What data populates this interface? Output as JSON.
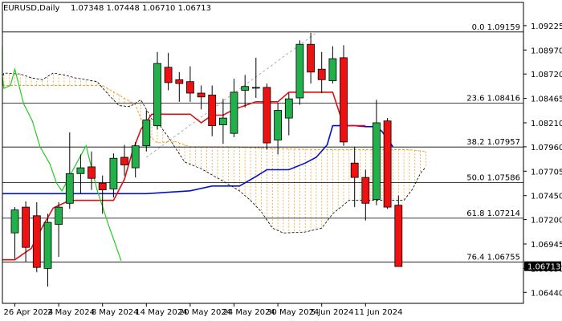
{
  "header": {
    "symbol": "EURUSD,Daily",
    "ohlc": "1.07348 1.07448 1.06710 1.06713"
  },
  "colors": {
    "bull": "#22b04b",
    "bear": "#ee1111",
    "kijun": "#0011cc",
    "tenkan": "#dd1111",
    "chikou": "#22cc22",
    "cloud": "#f0a030",
    "senkou": "#000000",
    "price_box": "#000000"
  },
  "chart_data": {
    "type": "candlestick",
    "title": "EURUSD,Daily",
    "ylim": [
      1.0635,
      1.0935
    ],
    "y_ticks": [
      "1.09225",
      "1.08970",
      "1.08720",
      "1.08465",
      "1.08210",
      "1.07960",
      "1.07705",
      "1.07450",
      "1.07200",
      "1.06945",
      "1.06690",
      "1.06440"
    ],
    "x_labels": [
      {
        "i": 0,
        "text": "26 Apr 2024"
      },
      {
        "i": 4,
        "text": "2 May 2024"
      },
      {
        "i": 8,
        "text": "8 May 2024"
      },
      {
        "i": 12,
        "text": "14 May 2024"
      },
      {
        "i": 16,
        "text": "20 May 2024"
      },
      {
        "i": 20,
        "text": "24 May 2024"
      },
      {
        "i": 24,
        "text": "30 May 2024"
      },
      {
        "i": 28,
        "text": "5 Jun 2024"
      },
      {
        "i": 32,
        "text": "11 Jun 2024"
      }
    ],
    "candles": [
      [
        1.0706,
        1.0733,
        1.0679,
        1.073
      ],
      [
        1.0733,
        1.0739,
        1.0676,
        1.0691
      ],
      [
        1.0724,
        1.0738,
        1.0665,
        1.067
      ],
      [
        1.0669,
        1.0726,
        1.065,
        1.0717
      ],
      [
        1.0715,
        1.0738,
        1.0681,
        1.0733
      ],
      [
        1.0737,
        1.0811,
        1.0731,
        1.0768
      ],
      [
        1.0768,
        1.0788,
        1.0747,
        1.0774
      ],
      [
        1.0775,
        1.0791,
        1.0751,
        1.0763
      ],
      [
        1.0758,
        1.0766,
        1.0726,
        1.0751
      ],
      [
        1.0752,
        1.0789,
        1.0743,
        1.0784
      ],
      [
        1.0785,
        1.0798,
        1.0766,
        1.0777
      ],
      [
        1.0774,
        1.0801,
        1.0764,
        1.0797
      ],
      [
        1.0797,
        1.0834,
        1.0791,
        1.0824
      ],
      [
        1.0818,
        1.0895,
        1.0814,
        1.0883
      ],
      [
        1.0879,
        1.0894,
        1.0855,
        1.0863
      ],
      [
        1.0866,
        1.0874,
        1.0843,
        1.0862
      ],
      [
        1.0864,
        1.088,
        1.0843,
        1.0852
      ],
      [
        1.0852,
        1.086,
        1.0835,
        1.0848
      ],
      [
        1.085,
        1.086,
        1.0807,
        1.0818
      ],
      [
        1.0819,
        1.0846,
        1.0799,
        1.0826
      ],
      [
        1.081,
        1.0867,
        1.0806,
        1.0853
      ],
      [
        1.0855,
        1.0871,
        1.0837,
        1.0859
      ],
      [
        1.0858,
        1.0889,
        1.0847,
        1.0858
      ],
      [
        1.0858,
        1.0862,
        1.0793,
        1.08
      ],
      [
        1.0803,
        1.0842,
        1.0788,
        1.0834
      ],
      [
        1.0826,
        1.0852,
        1.0808,
        1.0846
      ],
      [
        1.0847,
        1.0907,
        1.084,
        1.0903
      ],
      [
        1.0903,
        1.0915,
        1.0862,
        1.0874
      ],
      [
        1.0877,
        1.0895,
        1.0852,
        1.0866
      ],
      [
        1.0865,
        1.0901,
        1.0862,
        1.0888
      ],
      [
        1.0889,
        1.0902,
        1.0797,
        1.0801
      ],
      [
        1.0779,
        1.0796,
        1.0733,
        1.0764
      ],
      [
        1.0764,
        1.0772,
        1.0719,
        1.0737
      ],
      [
        1.0741,
        1.0845,
        1.0735,
        1.0821
      ],
      [
        1.0823,
        1.0826,
        1.0731,
        1.0733
      ],
      [
        1.0735,
        1.0745,
        1.0671,
        1.0671
      ]
    ],
    "kijun": [
      [
        -4,
        1.0747
      ],
      [
        12,
        1.0747
      ],
      [
        16,
        1.075
      ],
      [
        18,
        1.0755
      ],
      [
        20.5,
        1.0755
      ],
      [
        22,
        1.0765
      ],
      [
        23,
        1.0772
      ],
      [
        25,
        1.0772
      ],
      [
        26.5,
        1.0779
      ],
      [
        27.5,
        1.0785
      ],
      [
        28.5,
        1.0798
      ],
      [
        29,
        1.0818
      ],
      [
        31,
        1.0818
      ],
      [
        32,
        1.0817
      ],
      [
        33,
        1.0817
      ],
      [
        33.5,
        1.0812
      ],
      [
        34.5,
        1.0796
      ]
    ],
    "tenkan": [
      [
        -4,
        1.0678
      ],
      [
        0,
        1.0678
      ],
      [
        1.5,
        1.069
      ],
      [
        2.5,
        1.0712
      ],
      [
        3.5,
        1.0732
      ],
      [
        5,
        1.074
      ],
      [
        9,
        1.074
      ],
      [
        10,
        1.0762
      ],
      [
        10.7,
        1.079
      ],
      [
        11.5,
        1.0814
      ],
      [
        12.5,
        1.083
      ],
      [
        16,
        1.083
      ],
      [
        17,
        1.0821
      ],
      [
        18,
        1.0829
      ],
      [
        19,
        1.0829
      ],
      [
        20,
        1.0835
      ],
      [
        22,
        1.0843
      ],
      [
        24,
        1.0843
      ],
      [
        25,
        1.0853
      ],
      [
        28,
        1.0853
      ],
      [
        29,
        1.0853
      ],
      [
        30,
        1.0818
      ],
      [
        31,
        1.0818
      ],
      [
        32,
        1.0818
      ]
    ],
    "chikou": [
      [
        -4,
        1.0901
      ],
      [
        -3.4,
        1.087
      ],
      [
        -2.7,
        1.0864
      ],
      [
        -2.2,
        1.086
      ],
      [
        -1.5,
        1.0869
      ],
      [
        -1,
        1.0857
      ],
      [
        -0.4,
        1.086
      ],
      [
        0,
        1.0877
      ],
      [
        0.8,
        1.0841
      ],
      [
        1.6,
        1.0823
      ],
      [
        2.3,
        1.0796
      ],
      [
        3.2,
        1.0778
      ],
      [
        3.8,
        1.0758
      ],
      [
        4.3,
        1.075
      ],
      [
        5.5,
        1.0776
      ],
      [
        6.5,
        1.0797
      ],
      [
        7.5,
        1.0751
      ],
      [
        8.5,
        1.0716
      ],
      [
        9.7,
        1.0677
      ]
    ],
    "senkou_a": [
      [
        -4,
        1.086
      ],
      [
        -2,
        1.086
      ],
      [
        0,
        1.086
      ],
      [
        4,
        1.086
      ],
      [
        8,
        1.086
      ],
      [
        11,
        1.084
      ],
      [
        12,
        1.081
      ],
      [
        13,
        1.08
      ],
      [
        14.5,
        1.0802
      ],
      [
        16,
        1.0796
      ],
      [
        20,
        1.0796
      ],
      [
        24,
        1.0794
      ],
      [
        28,
        1.0793
      ],
      [
        32,
        1.0793
      ],
      [
        34,
        1.0793
      ],
      [
        36,
        1.0793
      ],
      [
        37.5,
        1.0791
      ]
    ],
    "senkou_b": [
      [
        -4,
        1.0858
      ],
      [
        -2,
        1.0868
      ],
      [
        -1,
        1.0873
      ],
      [
        0.5,
        1.0872
      ],
      [
        1.5,
        1.0868
      ],
      [
        2.5,
        1.0866
      ],
      [
        3.5,
        1.0873
      ],
      [
        4.5,
        1.0871
      ],
      [
        5.5,
        1.0868
      ],
      [
        6.5,
        1.0866
      ],
      [
        7.5,
        1.0864
      ],
      [
        8.5,
        1.0851
      ],
      [
        9.5,
        1.0839
      ],
      [
        10.5,
        1.0838
      ],
      [
        11.5,
        1.0845
      ],
      [
        12.5,
        1.0825
      ],
      [
        13,
        1.0822
      ],
      [
        14,
        1.0806
      ],
      [
        15.5,
        1.078
      ],
      [
        17,
        1.0773
      ],
      [
        19,
        1.076
      ],
      [
        20.5,
        1.075
      ],
      [
        21.5,
        1.074
      ],
      [
        22.5,
        1.0728
      ],
      [
        23.5,
        1.0711
      ],
      [
        24.5,
        1.0706
      ],
      [
        26.5,
        1.0707
      ],
      [
        28,
        1.0711
      ],
      [
        29,
        1.0726
      ],
      [
        30.5,
        1.074
      ],
      [
        32,
        1.074
      ],
      [
        34,
        1.074
      ],
      [
        35.5,
        1.074
      ],
      [
        36.3,
        1.0752
      ],
      [
        37,
        1.0768
      ],
      [
        37.5,
        1.0775
      ]
    ],
    "fib_levels": [
      {
        "label": "0.0 1.09159",
        "value": 1.09159
      },
      {
        "label": "23.6 1.08416",
        "value": 1.08416
      },
      {
        "label": "38.2 1.07957",
        "value": 1.07957
      },
      {
        "label": "50.0 1.07586",
        "value": 1.07586
      },
      {
        "label": "61.8 1.07214",
        "value": 1.07214
      },
      {
        "label": "76.4 1.06755",
        "value": 1.06755
      }
    ],
    "trendline": {
      "from": [
        12,
        1.0785
      ],
      "to": [
        27.5,
        1.0915
      ]
    },
    "current_price": "1.06713",
    "current_price_value": 1.06713
  }
}
